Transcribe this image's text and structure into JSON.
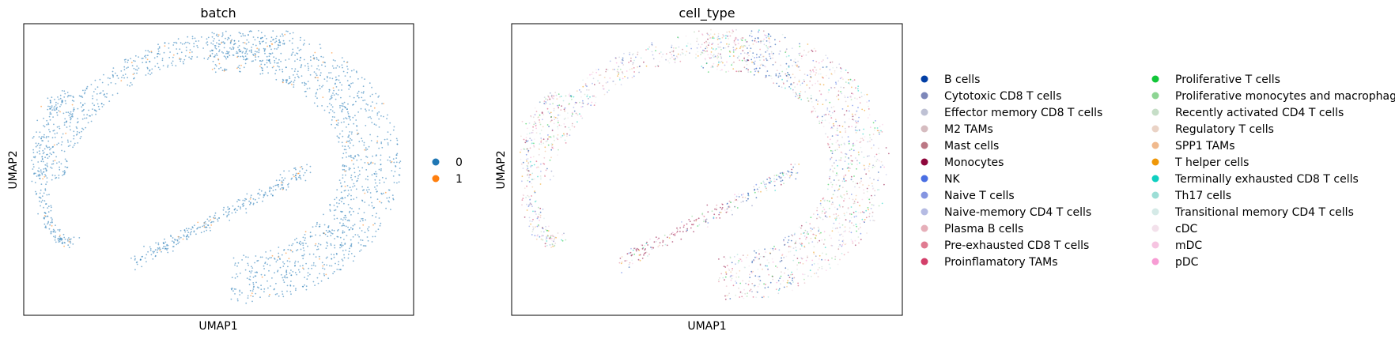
{
  "chart_data": [
    {
      "type": "scatter",
      "title": "batch",
      "xlabel": "UMAP1",
      "ylabel": "UMAP2",
      "ticks": "none",
      "grid": false,
      "legend": {
        "placement": "right",
        "entries": [
          {
            "label": "0",
            "color": "#1f77b4"
          },
          {
            "label": "1",
            "color": "#ff7f0e"
          }
        ]
      }
    },
    {
      "type": "scatter",
      "title": "cell_type",
      "xlabel": "UMAP1",
      "ylabel": "UMAP2",
      "ticks": "none",
      "grid": false,
      "legend": {
        "placement": "right",
        "columns": 2,
        "entries": [
          {
            "label": "B cells",
            "color": "#023fa5"
          },
          {
            "label": "Cytotoxic CD8 T cells",
            "color": "#7d87b9"
          },
          {
            "label": "Effector memory CD8 T cells",
            "color": "#bec1d4"
          },
          {
            "label": "M2 TAMs",
            "color": "#d6bcc0"
          },
          {
            "label": "Mast cells",
            "color": "#bb7784"
          },
          {
            "label": "Monocytes",
            "color": "#8e063b"
          },
          {
            "label": "NK",
            "color": "#4a6fe3"
          },
          {
            "label": "Naive T cells",
            "color": "#8595e1"
          },
          {
            "label": "Naive-memory CD4 T cells",
            "color": "#b5bbe3"
          },
          {
            "label": "Plasma B cells",
            "color": "#e6afb9"
          },
          {
            "label": "Pre-exhausted CD8 T cells",
            "color": "#e07b91"
          },
          {
            "label": "Proinflamatory TAMs",
            "color": "#d33f6a"
          },
          {
            "label": "Proliferative T cells",
            "color": "#11c638"
          },
          {
            "label": "Proliferative monocytes and macrophages",
            "color": "#8dd593"
          },
          {
            "label": "Recently activated CD4 T cells",
            "color": "#c6dec7"
          },
          {
            "label": "Regulatory T cells",
            "color": "#ead3c6"
          },
          {
            "label": "SPP1 TAMs",
            "color": "#f0b98d"
          },
          {
            "label": "T helper cells",
            "color": "#ef9708"
          },
          {
            "label": "Terminally exhausted CD8 T cells",
            "color": "#0fcfc0"
          },
          {
            "label": "Th17 cells",
            "color": "#9cded6"
          },
          {
            "label": "Transitional memory CD4 T cells",
            "color": "#d5eae7"
          },
          {
            "label": "cDC",
            "color": "#f3e1eb"
          },
          {
            "label": "mDC",
            "color": "#f6c4e1"
          },
          {
            "label": "pDC",
            "color": "#f79cd4"
          }
        ]
      }
    }
  ]
}
